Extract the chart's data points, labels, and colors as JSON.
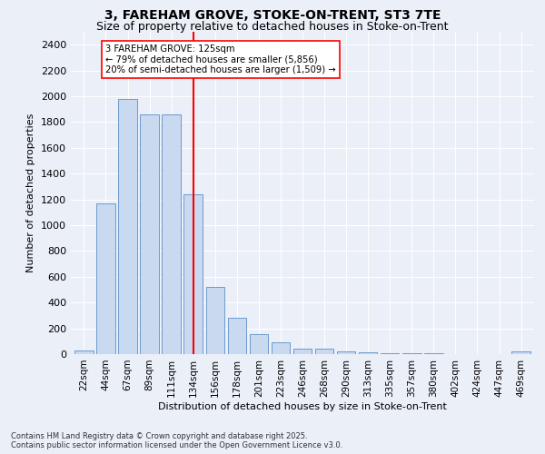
{
  "title1": "3, FAREHAM GROVE, STOKE-ON-TRENT, ST3 7TE",
  "title2": "Size of property relative to detached houses in Stoke-on-Trent",
  "xlabel": "Distribution of detached houses by size in Stoke-on-Trent",
  "ylabel": "Number of detached properties",
  "bar_labels": [
    "22sqm",
    "44sqm",
    "67sqm",
    "89sqm",
    "111sqm",
    "134sqm",
    "156sqm",
    "178sqm",
    "201sqm",
    "223sqm",
    "246sqm",
    "268sqm",
    "290sqm",
    "313sqm",
    "335sqm",
    "357sqm",
    "380sqm",
    "402sqm",
    "424sqm",
    "447sqm",
    "469sqm"
  ],
  "bar_values": [
    25,
    1170,
    1980,
    1860,
    1860,
    1240,
    520,
    280,
    155,
    90,
    45,
    42,
    20,
    15,
    8,
    5,
    4,
    3,
    2,
    2,
    18
  ],
  "bar_color": "#c9d9f0",
  "bar_edge_color": "#5b8fc9",
  "vline_x": 5.0,
  "vline_color": "red",
  "annotation_title": "3 FAREHAM GROVE: 125sqm",
  "annotation_line1": "← 79% of detached houses are smaller (5,856)",
  "annotation_line2": "20% of semi-detached houses are larger (1,509) →",
  "annotation_box_color": "white",
  "annotation_box_edge": "red",
  "ylim": [
    0,
    2500
  ],
  "yticks": [
    0,
    200,
    400,
    600,
    800,
    1000,
    1200,
    1400,
    1600,
    1800,
    2000,
    2200,
    2400
  ],
  "footnote1": "Contains HM Land Registry data © Crown copyright and database right 2025.",
  "footnote2": "Contains public sector information licensed under the Open Government Licence v3.0.",
  "bg_color": "#eaeff8",
  "grid_color": "white",
  "title_fontsize": 10,
  "subtitle_fontsize": 9
}
